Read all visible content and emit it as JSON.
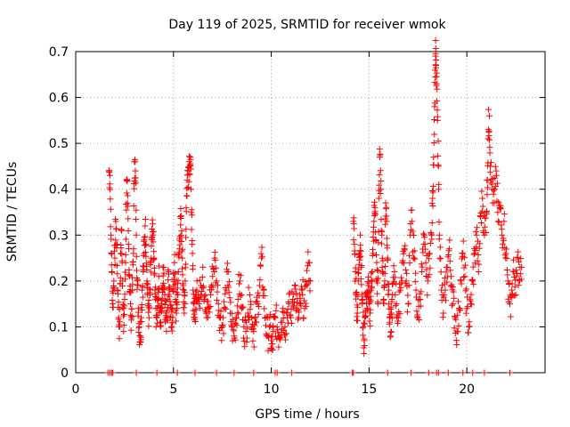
{
  "chart_data": {
    "type": "scatter",
    "title": "Day 119 of 2025, SRMTID for receiver wmok",
    "xlabel": "GPS time / hours",
    "ylabel": "SRMTID / TECUs",
    "xlim": [
      0,
      24
    ],
    "ylim": [
      0,
      0.7
    ],
    "xticks": [
      0,
      5,
      10,
      15,
      20
    ],
    "yticks": [
      0,
      0.1,
      0.2,
      0.3,
      0.4,
      0.5,
      0.6,
      0.7
    ],
    "xtick_labels": [
      "0",
      "5",
      "10",
      "15",
      "20"
    ],
    "ytick_labels": [
      "0",
      "0.1",
      "0.2",
      "0.3",
      "0.4",
      "0.5",
      "0.6",
      "0.7"
    ],
    "grid": true,
    "marker": "+",
    "color": "#ff0000",
    "series": [
      {
        "name": "SRMTID",
        "segments": [
          {
            "x_start": 1.6,
            "x_end": 12.0
          },
          {
            "x_start": 14.2,
            "x_end": 22.8
          }
        ],
        "points": [
          [
            1.7,
            0.44
          ],
          [
            1.75,
            0.43
          ],
          [
            1.8,
            0.3
          ],
          [
            1.85,
            0.22
          ],
          [
            1.9,
            0.15
          ],
          [
            1.95,
            0.2
          ],
          [
            2.0,
            0.25
          ],
          [
            2.05,
            0.33
          ],
          [
            2.1,
            0.28
          ],
          [
            2.15,
            0.18
          ],
          [
            2.2,
            0.12
          ],
          [
            2.25,
            0.1
          ],
          [
            2.3,
            0.26
          ],
          [
            2.35,
            0.31
          ],
          [
            2.4,
            0.2
          ],
          [
            2.45,
            0.09
          ],
          [
            2.5,
            0.16
          ],
          [
            2.55,
            0.24
          ],
          [
            2.6,
            0.42
          ],
          [
            2.65,
            0.37
          ],
          [
            2.7,
            0.28
          ],
          [
            2.75,
            0.21
          ],
          [
            2.8,
            0.15
          ],
          [
            2.85,
            0.12
          ],
          [
            2.9,
            0.18
          ],
          [
            2.95,
            0.26
          ],
          [
            3.0,
            0.46
          ],
          [
            3.05,
            0.44
          ],
          [
            3.1,
            0.3
          ],
          [
            3.15,
            0.2
          ],
          [
            3.2,
            0.14
          ],
          [
            3.25,
            0.1
          ],
          [
            3.3,
            0.08
          ],
          [
            3.35,
            0.12
          ],
          [
            3.4,
            0.18
          ],
          [
            3.45,
            0.22
          ],
          [
            3.5,
            0.26
          ],
          [
            3.55,
            0.32
          ],
          [
            3.6,
            0.28
          ],
          [
            3.65,
            0.2
          ],
          [
            3.7,
            0.15
          ],
          [
            3.75,
            0.12
          ],
          [
            3.8,
            0.17
          ],
          [
            3.85,
            0.24
          ],
          [
            3.9,
            0.29
          ],
          [
            3.95,
            0.3
          ],
          [
            4.0,
            0.25
          ],
          [
            4.05,
            0.18
          ],
          [
            4.1,
            0.14
          ],
          [
            4.15,
            0.12
          ],
          [
            4.2,
            0.16
          ],
          [
            4.25,
            0.21
          ],
          [
            4.3,
            0.14
          ],
          [
            4.35,
            0.11
          ],
          [
            4.4,
            0.15
          ],
          [
            4.45,
            0.19
          ],
          [
            4.5,
            0.23
          ],
          [
            4.55,
            0.17
          ],
          [
            4.6,
            0.13
          ],
          [
            4.65,
            0.12
          ],
          [
            4.7,
            0.16
          ],
          [
            4.75,
            0.22
          ],
          [
            4.8,
            0.18
          ],
          [
            4.85,
            0.12
          ],
          [
            4.9,
            0.1
          ],
          [
            4.95,
            0.14
          ],
          [
            5.0,
            0.19
          ],
          [
            5.05,
            0.24
          ],
          [
            5.1,
            0.16
          ],
          [
            5.15,
            0.13
          ],
          [
            5.2,
            0.17
          ],
          [
            5.25,
            0.22
          ],
          [
            5.3,
            0.27
          ],
          [
            5.35,
            0.34
          ],
          [
            5.4,
            0.3
          ],
          [
            5.45,
            0.25
          ],
          [
            5.5,
            0.19
          ],
          [
            5.55,
            0.13
          ],
          [
            5.6,
            0.2
          ],
          [
            5.65,
            0.36
          ],
          [
            5.7,
            0.42
          ],
          [
            5.75,
            0.44
          ],
          [
            5.8,
            0.46
          ],
          [
            5.85,
            0.47
          ],
          [
            5.9,
            0.4
          ],
          [
            5.95,
            0.28
          ],
          [
            6.0,
            0.18
          ],
          [
            6.05,
            0.15
          ],
          [
            6.1,
            0.12
          ],
          [
            6.15,
            0.17
          ],
          [
            6.2,
            0.2
          ],
          [
            6.3,
            0.15
          ],
          [
            6.4,
            0.19
          ],
          [
            6.5,
            0.23
          ],
          [
            6.6,
            0.16
          ],
          [
            6.7,
            0.12
          ],
          [
            6.8,
            0.14
          ],
          [
            6.9,
            0.17
          ],
          [
            7.0,
            0.21
          ],
          [
            7.1,
            0.25
          ],
          [
            7.2,
            0.2
          ],
          [
            7.3,
            0.15
          ],
          [
            7.4,
            0.12
          ],
          [
            7.5,
            0.1
          ],
          [
            7.6,
            0.14
          ],
          [
            7.7,
            0.18
          ],
          [
            7.8,
            0.22
          ],
          [
            7.9,
            0.13
          ],
          [
            8.0,
            0.1
          ],
          [
            8.1,
            0.08
          ],
          [
            8.2,
            0.12
          ],
          [
            8.3,
            0.16
          ],
          [
            8.4,
            0.2
          ],
          [
            8.5,
            0.14
          ],
          [
            8.6,
            0.1
          ],
          [
            8.7,
            0.09
          ],
          [
            8.8,
            0.13
          ],
          [
            8.9,
            0.17
          ],
          [
            9.0,
            0.12
          ],
          [
            9.1,
            0.09
          ],
          [
            9.2,
            0.11
          ],
          [
            9.3,
            0.15
          ],
          [
            9.4,
            0.19
          ],
          [
            9.5,
            0.25
          ],
          [
            9.6,
            0.18
          ],
          [
            9.7,
            0.12
          ],
          [
            9.8,
            0.08
          ],
          [
            9.9,
            0.1
          ],
          [
            10.0,
            0.07
          ],
          [
            10.05,
            0.05
          ],
          [
            10.1,
            0.09
          ],
          [
            10.2,
            0.12
          ],
          [
            10.3,
            0.1
          ],
          [
            10.4,
            0.08
          ],
          [
            10.5,
            0.11
          ],
          [
            10.6,
            0.14
          ],
          [
            10.7,
            0.1
          ],
          [
            10.8,
            0.13
          ],
          [
            10.9,
            0.15
          ],
          [
            11.0,
            0.12
          ],
          [
            11.1,
            0.16
          ],
          [
            11.2,
            0.19
          ],
          [
            11.3,
            0.14
          ],
          [
            11.4,
            0.12
          ],
          [
            11.5,
            0.15
          ],
          [
            11.6,
            0.17
          ],
          [
            11.7,
            0.14
          ],
          [
            11.8,
            0.19
          ],
          [
            11.9,
            0.24
          ],
          [
            12.0,
            0.2
          ],
          [
            14.2,
            0.33
          ],
          [
            14.25,
            0.28
          ],
          [
            14.3,
            0.22
          ],
          [
            14.35,
            0.17
          ],
          [
            14.4,
            0.13
          ],
          [
            14.45,
            0.2
          ],
          [
            14.5,
            0.26
          ],
          [
            14.55,
            0.3
          ],
          [
            14.6,
            0.23
          ],
          [
            14.65,
            0.15
          ],
          [
            14.7,
            0.1
          ],
          [
            14.75,
            0.07
          ],
          [
            14.8,
            0.12
          ],
          [
            14.85,
            0.17
          ],
          [
            14.9,
            0.14
          ],
          [
            14.95,
            0.19
          ],
          [
            15.0,
            0.15
          ],
          [
            15.05,
            0.13
          ],
          [
            15.1,
            0.18
          ],
          [
            15.15,
            0.22
          ],
          [
            15.2,
            0.26
          ],
          [
            15.25,
            0.33
          ],
          [
            15.3,
            0.36
          ],
          [
            15.35,
            0.29
          ],
          [
            15.4,
            0.2
          ],
          [
            15.45,
            0.15
          ],
          [
            15.5,
            0.38
          ],
          [
            15.55,
            0.47
          ],
          [
            15.6,
            0.4
          ],
          [
            15.65,
            0.3
          ],
          [
            15.7,
            0.22
          ],
          [
            15.75,
            0.16
          ],
          [
            15.8,
            0.2
          ],
          [
            15.85,
            0.37
          ],
          [
            15.9,
            0.33
          ],
          [
            15.95,
            0.25
          ],
          [
            16.0,
            0.18
          ],
          [
            16.05,
            0.12
          ],
          [
            16.1,
            0.08
          ],
          [
            16.15,
            0.13
          ],
          [
            16.2,
            0.17
          ],
          [
            16.3,
            0.22
          ],
          [
            16.4,
            0.15
          ],
          [
            16.5,
            0.12
          ],
          [
            16.6,
            0.18
          ],
          [
            16.7,
            0.24
          ],
          [
            16.8,
            0.27
          ],
          [
            16.9,
            0.2
          ],
          [
            17.0,
            0.15
          ],
          [
            17.1,
            0.3
          ],
          [
            17.2,
            0.33
          ],
          [
            17.3,
            0.25
          ],
          [
            17.4,
            0.18
          ],
          [
            17.5,
            0.12
          ],
          [
            17.6,
            0.16
          ],
          [
            17.7,
            0.22
          ],
          [
            17.8,
            0.28
          ],
          [
            17.9,
            0.24
          ],
          [
            18.0,
            0.2
          ],
          [
            18.1,
            0.26
          ],
          [
            18.2,
            0.3
          ],
          [
            18.25,
            0.38
          ],
          [
            18.3,
            0.47
          ],
          [
            18.35,
            0.58
          ],
          [
            18.4,
            0.69
          ],
          [
            18.42,
            0.67
          ],
          [
            18.45,
            0.63
          ],
          [
            18.5,
            0.55
          ],
          [
            18.55,
            0.45
          ],
          [
            18.6,
            0.3
          ],
          [
            18.7,
            0.18
          ],
          [
            18.8,
            0.13
          ],
          [
            18.9,
            0.18
          ],
          [
            19.0,
            0.23
          ],
          [
            19.1,
            0.27
          ],
          [
            19.2,
            0.21
          ],
          [
            19.3,
            0.15
          ],
          [
            19.4,
            0.12
          ],
          [
            19.5,
            0.09
          ],
          [
            19.6,
            0.14
          ],
          [
            19.7,
            0.2
          ],
          [
            19.8,
            0.26
          ],
          [
            19.9,
            0.21
          ],
          [
            20.0,
            0.14
          ],
          [
            20.1,
            0.1
          ],
          [
            20.2,
            0.15
          ],
          [
            20.3,
            0.2
          ],
          [
            20.4,
            0.26
          ],
          [
            20.5,
            0.3
          ],
          [
            20.6,
            0.22
          ],
          [
            20.7,
            0.34
          ],
          [
            20.8,
            0.38
          ],
          [
            20.9,
            0.3
          ],
          [
            21.0,
            0.35
          ],
          [
            21.05,
            0.42
          ],
          [
            21.1,
            0.53
          ],
          [
            21.15,
            0.56
          ],
          [
            21.2,
            0.45
          ],
          [
            21.3,
            0.4
          ],
          [
            21.4,
            0.37
          ],
          [
            21.5,
            0.44
          ],
          [
            21.6,
            0.33
          ],
          [
            21.7,
            0.36
          ],
          [
            21.8,
            0.3
          ],
          [
            21.9,
            0.33
          ],
          [
            22.0,
            0.26
          ],
          [
            22.1,
            0.2
          ],
          [
            22.2,
            0.15
          ],
          [
            22.3,
            0.18
          ],
          [
            22.4,
            0.22
          ],
          [
            22.5,
            0.17
          ],
          [
            22.6,
            0.25
          ],
          [
            22.7,
            0.2
          ],
          [
            22.8,
            0.23
          ]
        ],
        "zero_points": [
          1.65,
          1.75,
          1.85,
          1.9,
          3.1,
          4.15,
          5.2,
          6.1,
          7.2,
          8.1,
          9.1,
          10.2,
          10.3,
          11.05,
          14.15,
          14.2,
          15.95,
          17.15,
          18.05,
          18.45,
          18.55,
          19.05,
          19.8,
          20.3,
          20.9,
          22.2
        ]
      }
    ]
  }
}
